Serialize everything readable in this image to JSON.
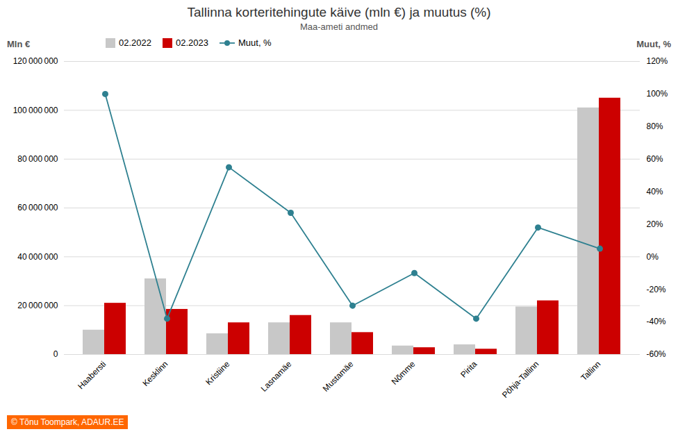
{
  "chart_data": {
    "type": "bar",
    "title": "Tallinna korteritehingute käive (mln €) ja muutus (%)",
    "subtitle": "Maa-ameti andmed",
    "categories": [
      "Haabersti",
      "Kesklinn",
      "Kristiine",
      "Lasnamäe",
      "Mustamäe",
      "Nõmme",
      "Pirita",
      "Põhja-Tallinn",
      "Tallinn"
    ],
    "series": [
      {
        "name": "02.2022",
        "color": "#c8c8c8",
        "values": [
          10000000,
          31000000,
          8500000,
          13000000,
          13000000,
          3500000,
          4000000,
          19500000,
          101000000
        ]
      },
      {
        "name": "02.2023",
        "color": "#cc0000",
        "values": [
          21000000,
          18500000,
          13000000,
          16000000,
          9000000,
          2800000,
          2200000,
          22000000,
          105000000
        ]
      },
      {
        "name": "Muut, %",
        "type": "line",
        "axis": "y2",
        "color": "#2e8090",
        "marker": "circle",
        "values": [
          100,
          -38,
          55,
          27,
          -30,
          -10,
          -38,
          18,
          5
        ]
      }
    ],
    "ylabel": "Mln €",
    "y2label": "Muut, %",
    "ylim": [
      0,
      120000000
    ],
    "yticks": [
      0,
      {
        "value": 20000000,
        "label": "20 000 000"
      },
      {
        "value": 40000000,
        "label": "40 000 000"
      },
      {
        "value": 60000000,
        "label": "60 000 000"
      },
      {
        "value": 80000000,
        "label": "80 000 000"
      },
      {
        "value": 100000000,
        "label": "100 000 000"
      },
      {
        "value": 120000000,
        "label": "120 000 000"
      }
    ],
    "y2lim": [
      -60,
      120
    ],
    "y2ticks": [
      {
        "value": -60,
        "label": "-60%"
      },
      {
        "value": -40,
        "label": "-40%"
      },
      {
        "value": -20,
        "label": "-20%"
      },
      {
        "value": 0,
        "label": "0%"
      },
      {
        "value": 20,
        "label": "20%"
      },
      {
        "value": 40,
        "label": "40%"
      },
      {
        "value": 60,
        "label": "60%"
      },
      {
        "value": 80,
        "label": "80%"
      },
      {
        "value": 100,
        "label": "100%"
      },
      {
        "value": 120,
        "label": "120%"
      }
    ],
    "grid": true,
    "legend": "upper left",
    "annotations": [
      "© Tõnu Toompark, ADAUR.EE"
    ]
  }
}
